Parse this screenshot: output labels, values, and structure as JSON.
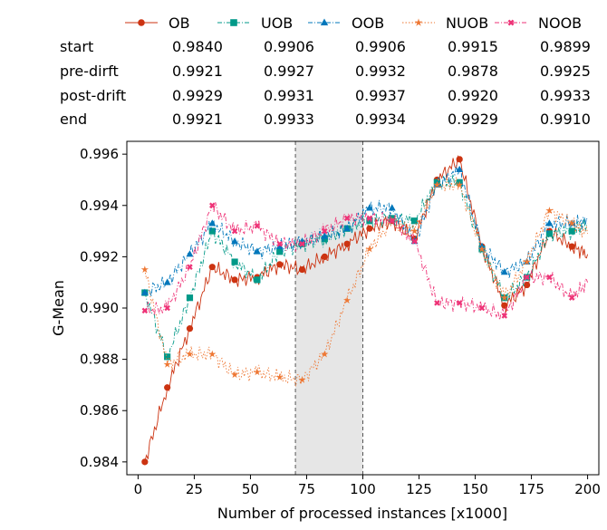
{
  "chart_data": {
    "type": "line",
    "title": "",
    "xlabel": "Number of processed instances [x1000]",
    "ylabel": "G-Mean",
    "xlim": [
      -5,
      205
    ],
    "ylim": [
      0.9835,
      0.9965
    ],
    "xticks": [
      0,
      25,
      50,
      75,
      100,
      125,
      150,
      175,
      200
    ],
    "yticks": [
      0.984,
      0.986,
      0.988,
      0.99,
      0.992,
      0.994,
      0.996
    ],
    "ytick_labels": [
      "0.984",
      "0.986",
      "0.988",
      "0.990",
      "0.992",
      "0.994",
      "0.996"
    ],
    "grid": false,
    "shaded_region": [
      70,
      100
    ],
    "vertical_lines": [
      70,
      100
    ],
    "legend_position": "top",
    "table": {
      "row_labels": [
        "start",
        "pre-dirft",
        "post-drift",
        "end"
      ],
      "rows": [
        [
          "0.9840",
          "0.9906",
          "0.9906",
          "0.9915",
          "0.9899"
        ],
        [
          "0.9921",
          "0.9927",
          "0.9932",
          "0.9878",
          "0.9925"
        ],
        [
          "0.9929",
          "0.9931",
          "0.9937",
          "0.9920",
          "0.9933"
        ],
        [
          "0.9921",
          "0.9933",
          "0.9934",
          "0.9929",
          "0.9910"
        ]
      ]
    },
    "x": [
      3,
      13,
      23,
      33,
      43,
      53,
      63,
      73,
      83,
      93,
      103,
      113,
      123,
      133,
      143,
      153,
      163,
      173,
      183,
      193,
      200
    ],
    "series": [
      {
        "name": "OB",
        "color": "#cc3311",
        "marker": "circle",
        "line_style": "solid",
        "values": [
          0.984,
          0.9869,
          0.9892,
          0.9916,
          0.9911,
          0.9912,
          0.9917,
          0.9915,
          0.992,
          0.9925,
          0.9931,
          0.9934,
          0.9927,
          0.995,
          0.9958,
          0.9924,
          0.9901,
          0.9909,
          0.993,
          0.9924,
          0.9921
        ]
      },
      {
        "name": "UOB",
        "color": "#009988",
        "marker": "square",
        "line_style": "dashdot",
        "values": [
          0.9906,
          0.9881,
          0.9904,
          0.993,
          0.9918,
          0.9911,
          0.9922,
          0.9925,
          0.9927,
          0.9931,
          0.9934,
          0.9935,
          0.9934,
          0.9949,
          0.9949,
          0.9923,
          0.9904,
          0.9912,
          0.9929,
          0.993,
          0.9933
        ]
      },
      {
        "name": "OOB",
        "color": "#0077bb",
        "marker": "triangle",
        "line_style": "dashdot",
        "values": [
          0.9906,
          0.991,
          0.9921,
          0.9933,
          0.9926,
          0.9922,
          0.9924,
          0.9926,
          0.9928,
          0.9931,
          0.9939,
          0.9939,
          0.9926,
          0.9948,
          0.9954,
          0.9924,
          0.9914,
          0.9918,
          0.9933,
          0.9933,
          0.9934
        ]
      },
      {
        "name": "NUOB",
        "color": "#ee7733",
        "marker": "star",
        "line_style": "dotted",
        "values": [
          0.9915,
          0.9878,
          0.9882,
          0.9882,
          0.9874,
          0.9875,
          0.9873,
          0.9872,
          0.9882,
          0.9903,
          0.9923,
          0.9934,
          0.993,
          0.9948,
          0.9948,
          0.9923,
          0.9904,
          0.9918,
          0.9938,
          0.9933,
          0.9929
        ]
      },
      {
        "name": "NOOB",
        "color": "#ee3377",
        "marker": "x",
        "line_style": "dashdot",
        "values": [
          0.9899,
          0.99,
          0.9916,
          0.994,
          0.993,
          0.9932,
          0.9925,
          0.9925,
          0.993,
          0.9935,
          0.9935,
          0.9934,
          0.9926,
          0.9902,
          0.9902,
          0.99,
          0.9897,
          0.9912,
          0.9912,
          0.9904,
          0.991
        ]
      }
    ]
  }
}
